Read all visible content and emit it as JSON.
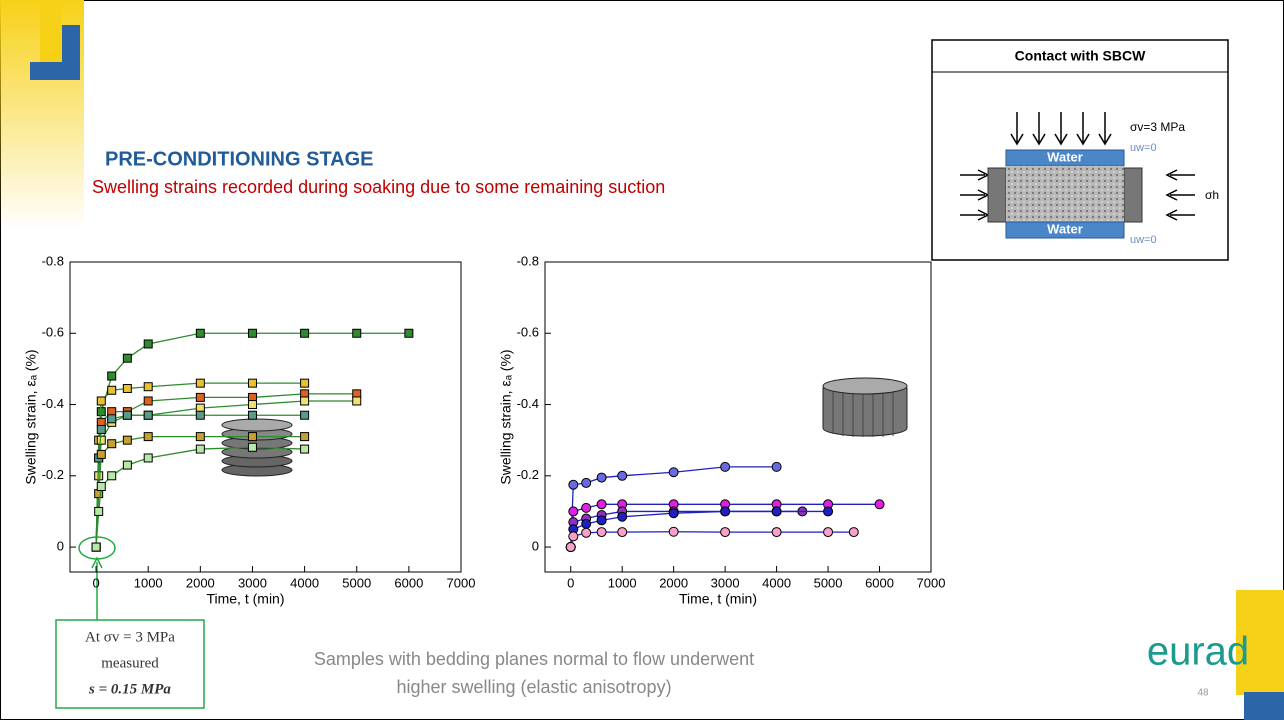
{
  "slide": {
    "title": "PRE-CONDITIONING STAGE",
    "subtitle": "Swelling strains recorded during soaking due to some remaining suction",
    "caption": [
      "Samples with bedding planes normal to flow underwent",
      "higher swelling (elastic anisotropy)"
    ],
    "callout": [
      "At σv = 3 MPa",
      "measured",
      "s = 0.15 MPa"
    ],
    "diagram": {
      "title": "Contact with SBCW",
      "sigma_v": "σv=3 MPa",
      "uw_top": "uw=0",
      "water_top": "Water",
      "water_bottom": "Water",
      "sigma_h": "σh",
      "uw_bottom": "uw=0"
    },
    "logo": "eurad",
    "page_number": "48"
  },
  "chart_data": [
    {
      "type": "line",
      "marker": "square",
      "x_label": "Time, t (min)",
      "y_label": "Swelling strain, εₐ (%)",
      "xlim": [
        -500,
        7000
      ],
      "xticks": [
        0,
        1000,
        2000,
        3000,
        4000,
        5000,
        6000,
        7000
      ],
      "ylim": [
        0.07,
        -0.8
      ],
      "yticks": [
        -0.8,
        -0.6,
        -0.4,
        -0.2,
        0
      ],
      "series": [
        {
          "color": "#2e8b2e",
          "x": [
            0,
            100,
            300,
            600,
            1000,
            2000,
            3000,
            4000,
            5000,
            6000
          ],
          "values": [
            0,
            -0.38,
            -0.48,
            -0.53,
            -0.57,
            -0.6,
            -0.6,
            -0.6,
            -0.6,
            -0.6
          ]
        },
        {
          "color": "#e8c030",
          "x": [
            0,
            50,
            100,
            300,
            600,
            1000,
            2000,
            3000,
            4000
          ],
          "values": [
            0,
            -0.3,
            -0.41,
            -0.44,
            -0.445,
            -0.45,
            -0.46,
            -0.46,
            -0.46
          ]
        },
        {
          "color": "#e06020",
          "x": [
            0,
            50,
            100,
            300,
            600,
            1000,
            2000,
            3000,
            4000,
            5000
          ],
          "values": [
            0,
            -0.25,
            -0.35,
            -0.38,
            -0.38,
            -0.41,
            -0.42,
            -0.42,
            -0.43,
            -0.43
          ]
        },
        {
          "color": "#f0e070",
          "x": [
            0,
            50,
            100,
            300,
            600,
            1000,
            2000,
            3000,
            4000,
            5000
          ],
          "values": [
            0,
            -0.2,
            -0.3,
            -0.35,
            -0.37,
            -0.37,
            -0.39,
            -0.4,
            -0.41,
            -0.41
          ]
        },
        {
          "color": "#5a9a8a",
          "x": [
            0,
            50,
            100,
            300,
            600,
            1000,
            2000,
            3000,
            4000
          ],
          "values": [
            0,
            -0.25,
            -0.33,
            -0.36,
            -0.37,
            -0.37,
            -0.37,
            -0.37,
            -0.37
          ]
        },
        {
          "color": "#c8a030",
          "x": [
            0,
            50,
            100,
            300,
            600,
            1000,
            2000,
            3000,
            4000
          ],
          "values": [
            0,
            -0.15,
            -0.26,
            -0.29,
            -0.3,
            -0.31,
            -0.31,
            -0.31,
            -0.31
          ]
        },
        {
          "color": "#b8e8a8",
          "x": [
            0,
            50,
            100,
            300,
            600,
            1000,
            2000,
            3000,
            4000
          ],
          "values": [
            0,
            -0.1,
            -0.17,
            -0.2,
            -0.23,
            -0.25,
            -0.275,
            -0.28,
            -0.275
          ]
        }
      ]
    },
    {
      "type": "line",
      "marker": "circle",
      "x_label": "Time, t (min)",
      "y_label": "Swelling strain, εₐ (%)",
      "xlim": [
        -500,
        7000
      ],
      "xticks": [
        0,
        1000,
        2000,
        3000,
        4000,
        5000,
        6000,
        7000
      ],
      "ylim": [
        0.07,
        -0.8
      ],
      "yticks": [
        -0.8,
        -0.6,
        -0.4,
        -0.2,
        0
      ],
      "series": [
        {
          "color": "#6a6ae0",
          "x": [
            0,
            50,
            300,
            600,
            1000,
            2000,
            3000,
            4000
          ],
          "values": [
            0,
            -0.175,
            -0.18,
            -0.195,
            -0.2,
            -0.21,
            -0.225,
            -0.225
          ]
        },
        {
          "color": "#e020e0",
          "x": [
            0,
            50,
            300,
            600,
            1000,
            2000,
            3000,
            4000,
            5000,
            6000
          ],
          "values": [
            0,
            -0.1,
            -0.11,
            -0.12,
            -0.12,
            -0.12,
            -0.12,
            -0.12,
            -0.12,
            -0.12
          ]
        },
        {
          "color": "#9030c0",
          "x": [
            0,
            50,
            300,
            600,
            1000,
            2000,
            3000,
            4000,
            4500
          ],
          "values": [
            0,
            -0.07,
            -0.08,
            -0.09,
            -0.1,
            -0.1,
            -0.1,
            -0.1,
            -0.1
          ]
        },
        {
          "color": "#2020c0",
          "x": [
            0,
            50,
            300,
            600,
            1000,
            2000,
            3000,
            4000,
            5000
          ],
          "values": [
            0,
            -0.05,
            -0.065,
            -0.075,
            -0.085,
            -0.095,
            -0.1,
            -0.1,
            -0.1
          ]
        },
        {
          "color": "#f8a0c8",
          "x": [
            0,
            50,
            300,
            600,
            1000,
            2000,
            3000,
            4000,
            5000,
            5500
          ],
          "values": [
            0,
            -0.03,
            -0.04,
            -0.042,
            -0.042,
            -0.043,
            -0.042,
            -0.042,
            -0.042,
            -0.042
          ]
        }
      ]
    }
  ]
}
